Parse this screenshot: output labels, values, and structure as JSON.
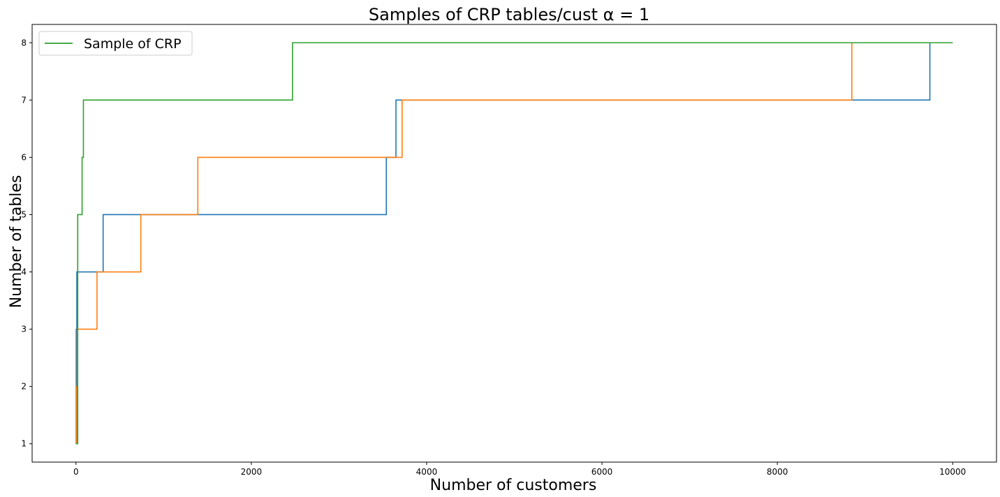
{
  "chart_data": {
    "type": "line",
    "title": "Samples of CRP tables/cust α = 1",
    "xlabel": "Number of customers",
    "ylabel": "Number of tables",
    "xlim": [
      -500,
      10500
    ],
    "ylim": [
      0.68,
      8.32
    ],
    "xticks": [
      0,
      2000,
      4000,
      6000,
      8000,
      10000
    ],
    "yticks": [
      1,
      2,
      3,
      4,
      5,
      6,
      7,
      8
    ],
    "grid": false,
    "legend": {
      "placement": "top-left",
      "entries": [
        "Sample of CRP"
      ]
    },
    "series": [
      {
        "name": "",
        "color": "#1f77b4",
        "step_x": [
          0,
          3,
          10,
          310,
          3540,
          3650,
          9740,
          10000
        ],
        "step_y": [
          1,
          3,
          4,
          5,
          6,
          7,
          8,
          8
        ]
      },
      {
        "name": "",
        "color": "#ff7f0e",
        "step_x": [
          0,
          8,
          15,
          240,
          740,
          1390,
          3720,
          8850,
          10000
        ],
        "step_y": [
          1,
          2,
          3,
          4,
          5,
          6,
          7,
          8,
          8
        ]
      },
      {
        "name": "Sample of CRP",
        "color": "#2ca02c",
        "step_x": [
          0,
          20,
          70,
          85,
          2470,
          10000
        ],
        "step_y": [
          1,
          5,
          6,
          7,
          8,
          8
        ]
      }
    ]
  }
}
